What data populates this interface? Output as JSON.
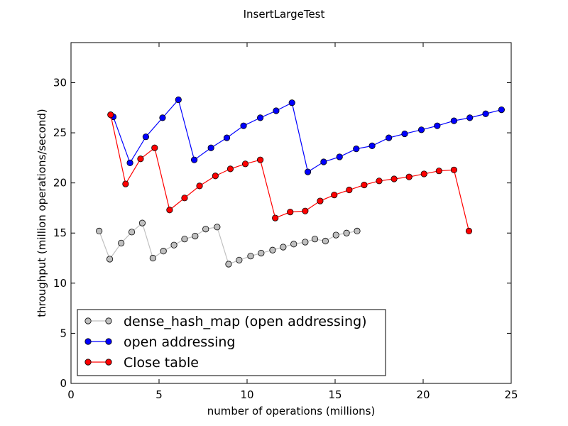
{
  "chart_data": {
    "type": "line",
    "title": "InsertLargeTest",
    "xlabel": "number of operations (millions)",
    "ylabel": "throughput (million operations/second)",
    "xlim": [
      0,
      25
    ],
    "ylim": [
      0,
      34
    ],
    "x_ticks": [
      0,
      5,
      10,
      15,
      20,
      25
    ],
    "y_ticks": [
      0,
      5,
      10,
      15,
      20,
      25,
      30
    ],
    "grid": false,
    "legend_position": "lower-left",
    "series": [
      {
        "name": "dense_hash_map (open addressing)",
        "color": "#c0c0c0",
        "marker_fill": "#bfbfbf",
        "marker_edge": "#000000",
        "points": [
          [
            1.6,
            15.2
          ],
          [
            2.2,
            12.4
          ],
          [
            2.85,
            14.0
          ],
          [
            3.45,
            15.1
          ],
          [
            4.05,
            16.0
          ],
          [
            4.65,
            12.5
          ],
          [
            5.25,
            13.2
          ],
          [
            5.85,
            13.8
          ],
          [
            6.45,
            14.4
          ],
          [
            7.05,
            14.7
          ],
          [
            7.65,
            15.4
          ],
          [
            8.3,
            15.6
          ],
          [
            8.95,
            11.9
          ],
          [
            9.55,
            12.3
          ],
          [
            10.2,
            12.7
          ],
          [
            10.8,
            13.0
          ],
          [
            11.45,
            13.3
          ],
          [
            12.05,
            13.6
          ],
          [
            12.65,
            13.9
          ],
          [
            13.3,
            14.1
          ],
          [
            13.85,
            14.4
          ],
          [
            14.45,
            14.2
          ],
          [
            15.05,
            14.8
          ],
          [
            15.65,
            15.0
          ],
          [
            16.25,
            15.2
          ]
        ]
      },
      {
        "name": "open addressing",
        "color": "#0000ff",
        "marker_fill": "#0000ff",
        "marker_edge": "#000000",
        "points": [
          [
            2.4,
            26.6
          ],
          [
            3.35,
            22.0
          ],
          [
            4.25,
            24.6
          ],
          [
            5.2,
            26.5
          ],
          [
            6.1,
            28.3
          ],
          [
            7.0,
            22.3
          ],
          [
            7.95,
            23.5
          ],
          [
            8.85,
            24.5
          ],
          [
            9.8,
            25.7
          ],
          [
            10.75,
            26.5
          ],
          [
            11.65,
            27.2
          ],
          [
            12.55,
            28.0
          ],
          [
            13.45,
            21.1
          ],
          [
            14.35,
            22.1
          ],
          [
            15.25,
            22.6
          ],
          [
            16.2,
            23.4
          ],
          [
            17.1,
            23.7
          ],
          [
            18.05,
            24.5
          ],
          [
            18.95,
            24.9
          ],
          [
            19.9,
            25.3
          ],
          [
            20.8,
            25.7
          ],
          [
            21.75,
            26.2
          ],
          [
            22.65,
            26.5
          ],
          [
            23.55,
            26.9
          ],
          [
            24.45,
            27.3
          ]
        ]
      },
      {
        "name": "Close table",
        "color": "#ff0000",
        "marker_fill": "#ff0000",
        "marker_edge": "#000000",
        "points": [
          [
            2.25,
            26.8
          ],
          [
            3.1,
            19.9
          ],
          [
            3.95,
            22.4
          ],
          [
            4.75,
            23.5
          ],
          [
            5.6,
            17.3
          ],
          [
            6.45,
            18.5
          ],
          [
            7.3,
            19.7
          ],
          [
            8.2,
            20.7
          ],
          [
            9.05,
            21.4
          ],
          [
            9.9,
            21.9
          ],
          [
            10.75,
            22.3
          ],
          [
            11.6,
            16.5
          ],
          [
            12.45,
            17.1
          ],
          [
            13.3,
            17.2
          ],
          [
            14.15,
            18.2
          ],
          [
            14.95,
            18.8
          ],
          [
            15.8,
            19.3
          ],
          [
            16.65,
            19.8
          ],
          [
            17.5,
            20.2
          ],
          [
            18.35,
            20.4
          ],
          [
            19.2,
            20.6
          ],
          [
            20.05,
            20.9
          ],
          [
            20.9,
            21.2
          ],
          [
            21.75,
            21.3
          ],
          [
            22.6,
            15.2
          ]
        ]
      }
    ]
  }
}
